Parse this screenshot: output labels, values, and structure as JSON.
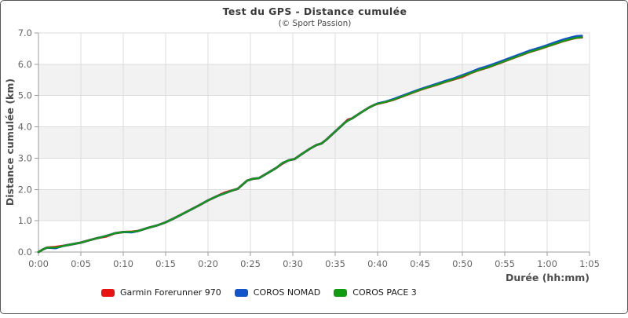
{
  "chart_data": {
    "type": "line",
    "title": "Test du GPS - Distance cumulée",
    "subtitle": "(© Sport Passion)",
    "xlabel": "Durée (hh:mm)",
    "ylabel": "Distance cumulée (km)",
    "xlim_minutes": [
      0,
      65
    ],
    "ylim": [
      0,
      7
    ],
    "grid": true,
    "legend_position": "bottom",
    "x_ticks": [
      "0:00",
      "0:05",
      "0:10",
      "0:15",
      "0:20",
      "0:25",
      "0:30",
      "0:35",
      "0:40",
      "0:45",
      "0:50",
      "0:55",
      "1:00",
      "1:05"
    ],
    "x_tick_minutes": [
      0,
      5,
      10,
      15,
      20,
      25,
      30,
      35,
      40,
      45,
      50,
      55,
      60,
      65
    ],
    "y_ticks": [
      "0.0",
      "1.0",
      "2.0",
      "3.0",
      "4.0",
      "5.0",
      "6.0",
      "7.0"
    ],
    "y_tick_values": [
      0,
      1,
      2,
      3,
      4,
      5,
      6,
      7
    ],
    "bands_km": [
      [
        1,
        2
      ],
      [
        3,
        4
      ],
      [
        5,
        6
      ]
    ],
    "style": {
      "band_color": "#f2f2f2",
      "grid_color": "#dcdcdc",
      "axis_color": "#9c9c9c",
      "tick_text_color": "#666666"
    },
    "x_minutes": [
      0,
      0.5,
      1,
      2,
      3,
      4,
      5,
      6,
      7,
      8,
      9,
      10,
      11,
      11.7,
      13,
      14,
      15,
      16,
      17,
      18,
      19,
      20,
      21,
      22,
      23,
      23.5,
      24.6,
      25.3,
      26,
      27,
      28,
      28.8,
      29.5,
      30.2,
      31,
      32,
      32.8,
      33.4,
      34,
      35,
      36,
      36.5,
      37,
      38,
      39,
      39.6,
      40,
      41,
      42,
      43,
      44,
      45,
      46,
      47,
      48,
      49,
      50,
      51,
      52,
      53,
      54,
      55,
      56,
      57,
      58,
      59,
      60,
      61,
      62,
      63,
      63.5,
      64.1
    ],
    "series": [
      {
        "name": "Garmin Forerunner 970",
        "color": "#e81212",
        "stroke_width": 3,
        "values": [
          0,
          0.08,
          0.14,
          0.16,
          0.2,
          0.25,
          0.3,
          0.38,
          0.45,
          0.5,
          0.6,
          0.64,
          0.65,
          0.67,
          0.78,
          0.85,
          0.95,
          1.08,
          1.22,
          1.36,
          1.5,
          1.65,
          1.78,
          1.9,
          1.98,
          2.02,
          2.28,
          2.34,
          2.36,
          2.52,
          2.68,
          2.83,
          2.93,
          2.97,
          3.12,
          3.3,
          3.42,
          3.47,
          3.6,
          3.85,
          4.1,
          4.23,
          4.27,
          4.45,
          4.62,
          4.7,
          4.74,
          4.8,
          4.88,
          4.98,
          5.08,
          5.18,
          5.27,
          5.35,
          5.44,
          5.52,
          5.6,
          5.72,
          5.82,
          5.9,
          6.0,
          6.1,
          6.2,
          6.3,
          6.4,
          6.48,
          6.57,
          6.66,
          6.75,
          6.82,
          6.85,
          6.86
        ]
      },
      {
        "name": "COROS NOMAD",
        "color": "#1155c8",
        "stroke_width": 2.7,
        "values": [
          0,
          0.08,
          0.14,
          0.12,
          0.2,
          0.25,
          0.3,
          0.38,
          0.45,
          0.52,
          0.6,
          0.64,
          0.63,
          0.67,
          0.78,
          0.85,
          0.95,
          1.08,
          1.22,
          1.36,
          1.5,
          1.65,
          1.78,
          1.88,
          1.98,
          2.02,
          2.28,
          2.34,
          2.36,
          2.52,
          2.68,
          2.85,
          2.93,
          2.97,
          3.12,
          3.3,
          3.42,
          3.47,
          3.6,
          3.85,
          4.1,
          4.2,
          4.27,
          4.45,
          4.62,
          4.7,
          4.75,
          4.81,
          4.9,
          5.0,
          5.1,
          5.2,
          5.29,
          5.38,
          5.47,
          5.55,
          5.65,
          5.75,
          5.86,
          5.94,
          6.04,
          6.14,
          6.24,
          6.34,
          6.44,
          6.52,
          6.61,
          6.71,
          6.8,
          6.87,
          6.9,
          6.91
        ]
      },
      {
        "name": "COROS PACE 3",
        "color": "#119b11",
        "stroke_width": 2.2,
        "values": [
          0,
          0.08,
          0.14,
          0.14,
          0.2,
          0.25,
          0.3,
          0.38,
          0.45,
          0.52,
          0.6,
          0.64,
          0.65,
          0.67,
          0.78,
          0.85,
          0.95,
          1.08,
          1.22,
          1.36,
          1.5,
          1.65,
          1.78,
          1.88,
          1.98,
          2.02,
          2.28,
          2.34,
          2.36,
          2.52,
          2.68,
          2.85,
          2.93,
          2.97,
          3.12,
          3.3,
          3.42,
          3.47,
          3.6,
          3.85,
          4.1,
          4.2,
          4.27,
          4.45,
          4.62,
          4.7,
          4.74,
          4.8,
          4.88,
          4.98,
          5.08,
          5.18,
          5.27,
          5.35,
          5.44,
          5.52,
          5.62,
          5.72,
          5.82,
          5.9,
          6.0,
          6.1,
          6.2,
          6.3,
          6.4,
          6.48,
          6.57,
          6.66,
          6.75,
          6.82,
          6.85,
          6.86
        ]
      }
    ]
  }
}
